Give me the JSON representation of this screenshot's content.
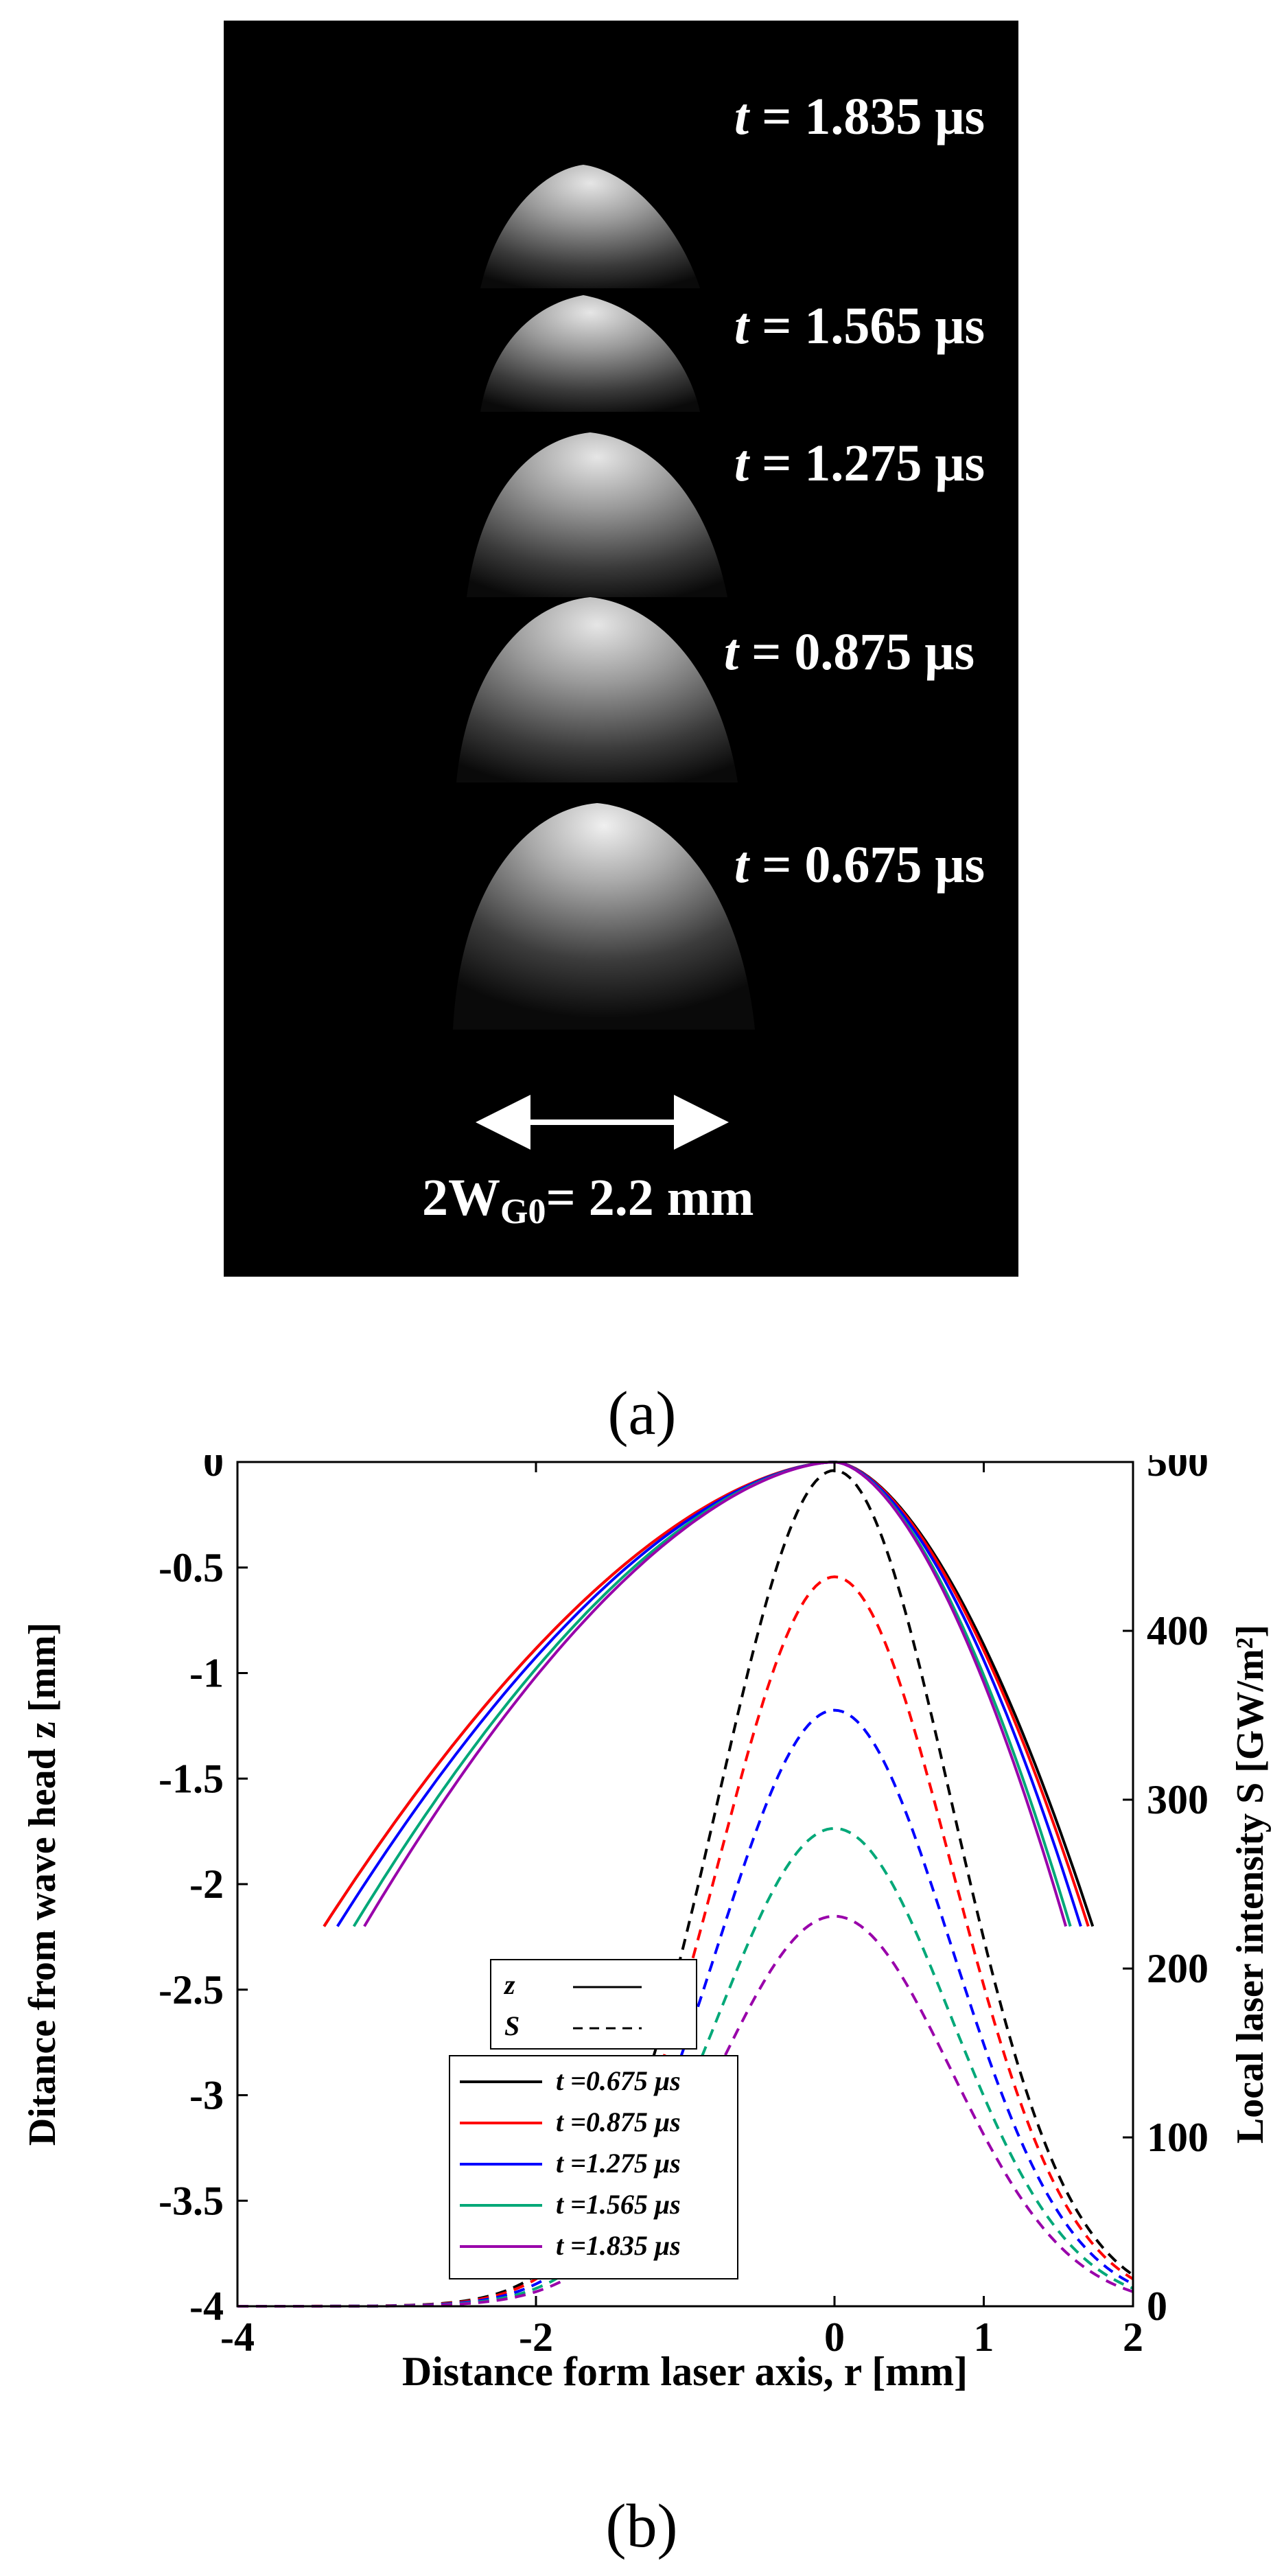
{
  "photo": {
    "frames": [
      {
        "label_prefix": "t",
        "label_value": "= 1.835 μs"
      },
      {
        "label_prefix": "t",
        "label_value": "= 1.565 μs"
      },
      {
        "label_prefix": "t",
        "label_value": "= 1.275 μs"
      },
      {
        "label_prefix": "t",
        "label_value": "= 0.875 μs"
      },
      {
        "label_prefix": "t",
        "label_value": "= 0.675 μs"
      }
    ],
    "scale_label_prefix": "2W",
    "scale_label_sub": "G0",
    "scale_label_value": "= 2.2 mm",
    "caption": "(a)"
  },
  "chart_data": {
    "type": "line",
    "xlabel": "Distance form laser axis,  r [mm]",
    "ylabel_left": "Ditance from wave head  z [mm]",
    "ylabel_right": "Local laser intensity  S [GW/m²]",
    "xlim": [
      -4,
      2
    ],
    "ylim_left": [
      -4,
      0
    ],
    "ylim_right": [
      0,
      500
    ],
    "xticks": [
      "-4",
      "-2",
      "0",
      "1",
      "2"
    ],
    "xtick_values": [
      -4,
      -2,
      0,
      1,
      2
    ],
    "yticks_left": [
      "0",
      "-0.5",
      "-1",
      "-1.5",
      "-2",
      "-2.5",
      "-3",
      "-3.5",
      "-4"
    ],
    "yticks_left_values": [
      0,
      -0.5,
      -1,
      -1.5,
      -2,
      -2.5,
      -3,
      -3.5,
      -4
    ],
    "yticks_right": [
      "500",
      "400",
      "300",
      "200",
      "100",
      "0"
    ],
    "yticks_right_values": [
      500,
      400,
      300,
      200,
      100,
      0
    ],
    "legend_style": {
      "z": "z",
      "S": "S"
    },
    "series": [
      {
        "name": "t =0.675 μs",
        "color": "#000000",
        "z_r_left": -3.42,
        "z_r_right": 1.73,
        "z_end": -2.2,
        "S_peak": 495
      },
      {
        "name": "t =0.875 μs",
        "color": "#ff0000",
        "z_r_left": -3.42,
        "z_r_right": 1.7,
        "z_end": -2.2,
        "S_peak": 432
      },
      {
        "name": "t =1.275 μs",
        "color": "#0000ff",
        "z_r_left": -3.33,
        "z_r_right": 1.65,
        "z_end": -2.2,
        "S_peak": 353
      },
      {
        "name": "t =1.565 μs",
        "color": "#00a878",
        "z_r_left": -3.22,
        "z_r_right": 1.58,
        "z_end": -2.2,
        "S_peak": 283
      },
      {
        "name": "t =1.835 μs",
        "color": "#9900aa",
        "z_r_left": -3.15,
        "z_r_right": 1.55,
        "z_end": -2.2,
        "S_peak": 231
      }
    ],
    "caption": "(b)"
  }
}
